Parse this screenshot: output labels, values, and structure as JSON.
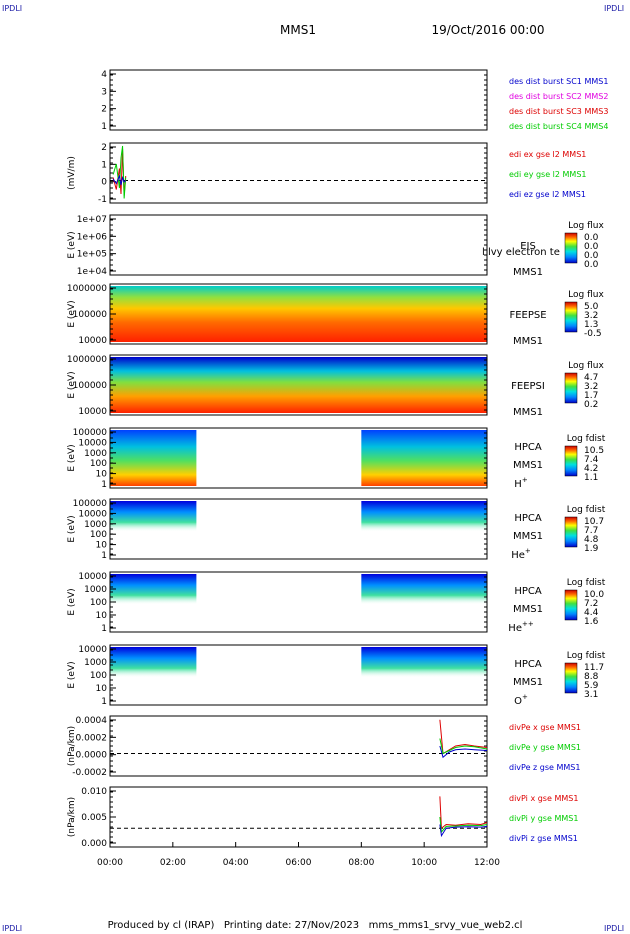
{
  "corner_labels": {
    "top_left": "IPDLI",
    "top_right": "IPDLI",
    "bottom_left": "IPDLI",
    "bottom_right": "IPDLI"
  },
  "header": {
    "spacecraft": "MMS1",
    "date": "19/Oct/2016 00:00"
  },
  "footer": {
    "produced_by": "Produced by cl (IRAP)",
    "printing_date": "Printing date: 27/Nov/2023",
    "file": "mms_mms1_srvy_vue_web2.cl"
  },
  "colors": {
    "blue": "#0000cc",
    "magenta": "#e000e0",
    "red": "#dd0000",
    "green": "#00cc00",
    "jet_low": "#0000ff",
    "jet_high": "#8b0000"
  },
  "chart_data": [
    {
      "type": "line",
      "ylim": [
        0.5,
        4.5
      ],
      "yticks": [
        "1",
        "2",
        "3",
        "4"
      ],
      "legend_position": "right",
      "series": [
        {
          "name": "des dist burst SC1 MMS1",
          "color": "#0000cc",
          "values": []
        },
        {
          "name": "des dist burst SC2 MMS2",
          "color": "#e000e0",
          "values": []
        },
        {
          "name": "des dist burst SC3 MMS3",
          "color": "#dd0000",
          "values": []
        },
        {
          "name": "des dist burst SC4 MMS4",
          "color": "#00cc00",
          "values": []
        }
      ]
    },
    {
      "type": "line",
      "ylabel": "(mV/m)",
      "ylim": [
        -1.5,
        2.5
      ],
      "yticks": [
        "-1",
        "0",
        "1",
        "2"
      ],
      "zero_line": true,
      "legend_position": "right",
      "series": [
        {
          "name": "edi ex gse l2 MMS1",
          "color": "#dd0000",
          "x_hours": [
            0.1,
            0.2,
            0.3,
            0.35,
            0.4,
            0.45,
            0.5
          ],
          "values": [
            0.2,
            -0.6,
            0.8,
            -0.9,
            2.1,
            -1.0,
            0.3
          ]
        },
        {
          "name": "edi ey gse l2 MMS1",
          "color": "#00cc00",
          "x_hours": [
            0.1,
            0.2,
            0.3,
            0.35,
            0.4,
            0.45,
            0.5
          ],
          "values": [
            0.4,
            1.1,
            -0.5,
            1.5,
            2.3,
            -1.2,
            0.2
          ]
        },
        {
          "name": "edi ez gse l2 MMS1",
          "color": "#0000cc",
          "x_hours": [
            0.1,
            0.2,
            0.3,
            0.35,
            0.4,
            0.45,
            0.5
          ],
          "values": [
            0.1,
            -0.2,
            0.3,
            -0.3,
            0.2,
            -0.1,
            0.0
          ]
        }
      ]
    },
    {
      "type": "heatmap",
      "ylabel": "E (eV)",
      "yticks": [
        "1e+04",
        "1e+05",
        "1e+06",
        "1e+07"
      ],
      "instrument": "EIS",
      "overlap_text": "l lvy electron te",
      "spacecraft": "MMS1",
      "colorbar": {
        "title": "Log flux",
        "ticks": [
          "0.0",
          "0.0",
          "0.0",
          "0.0"
        ]
      },
      "data_coverage": []
    },
    {
      "type": "heatmap",
      "ylabel": "E (eV)",
      "yticks": [
        "10000",
        "100000",
        "1000000"
      ],
      "instrument": "FEEPSE",
      "spacecraft": "MMS1",
      "colorbar": {
        "title": "Log flux",
        "ticks": [
          "5.0",
          "3.2",
          "1.3",
          "-0.5"
        ]
      },
      "data_coverage": [
        [
          0,
          12
        ]
      ]
    },
    {
      "type": "heatmap",
      "ylabel": "E (eV)",
      "yticks": [
        "10000",
        "100000",
        "1000000"
      ],
      "instrument": "FEEPSI",
      "spacecraft": "MMS1",
      "colorbar": {
        "title": "Log flux",
        "ticks": [
          "4.7",
          "3.2",
          "1.7",
          "0.2"
        ]
      },
      "data_coverage": [
        [
          0,
          12
        ]
      ]
    },
    {
      "type": "heatmap",
      "ylabel": "E (eV)",
      "yticks": [
        "1",
        "10",
        "100",
        "1000",
        "10000",
        "100000"
      ],
      "instrument": "HPCA",
      "spacecraft": "MMS1",
      "species": "H",
      "species_sup": "+",
      "colorbar": {
        "title": "Log fdist",
        "ticks": [
          "10.5",
          "7.4",
          "4.2",
          "1.1"
        ]
      },
      "data_coverage": [
        [
          0,
          2.75
        ],
        [
          8,
          12
        ]
      ]
    },
    {
      "type": "heatmap",
      "ylabel": "E (eV)",
      "yticks": [
        "1",
        "10",
        "100",
        "1000",
        "10000",
        "100000"
      ],
      "instrument": "HPCA",
      "spacecraft": "MMS1",
      "species": "He",
      "species_sup": "+",
      "colorbar": {
        "title": "Log fdist",
        "ticks": [
          "10.7",
          "7.7",
          "4.8",
          "1.9"
        ]
      },
      "data_coverage": [
        [
          0,
          2.75
        ],
        [
          8,
          12
        ]
      ]
    },
    {
      "type": "heatmap",
      "ylabel": "E (eV)",
      "yticks": [
        "1",
        "10",
        "100",
        "1000",
        "10000"
      ],
      "instrument": "HPCA",
      "spacecraft": "MMS1",
      "species": "He",
      "species_sup": "++",
      "colorbar": {
        "title": "Log fdist",
        "ticks": [
          "10.0",
          "7.2",
          "4.4",
          "1.6"
        ]
      },
      "data_coverage": [
        [
          0,
          2.75
        ],
        [
          8,
          12
        ]
      ]
    },
    {
      "type": "heatmap",
      "ylabel": "E (eV)",
      "yticks": [
        "1",
        "10",
        "100",
        "1000",
        "10000"
      ],
      "instrument": "HPCA",
      "spacecraft": "MMS1",
      "species": "O",
      "species_sup": "+",
      "colorbar": {
        "title": "Log fdist",
        "ticks": [
          "11.7",
          "8.8",
          "5.9",
          "3.1"
        ]
      },
      "data_coverage": [
        [
          0,
          2.75
        ],
        [
          8,
          12
        ]
      ]
    },
    {
      "type": "line",
      "ylabel": "(nPa/km)",
      "ylim": [
        -0.0003,
        0.0005
      ],
      "yticks": [
        "-0.0002",
        "0.0000",
        "0.0002",
        "0.0004"
      ],
      "zero_line": true,
      "legend_position": "right",
      "series": [
        {
          "name": "divPe x gse MMS1",
          "color": "#dd0000",
          "x_hours": [
            10.5,
            10.6,
            10.8,
            11.0,
            11.3,
            11.6,
            12.0
          ],
          "values": [
            0.00045,
            0.0,
            5e-05,
            0.0001,
            0.00012,
            0.0001,
            8e-05
          ]
        },
        {
          "name": "divPe y gse MMS1",
          "color": "#00cc00",
          "x_hours": [
            10.5,
            10.6,
            10.8,
            11.0,
            11.3,
            11.6,
            12.0
          ],
          "values": [
            0.0002,
            0.0,
            4e-05,
            8e-05,
            0.0001,
            9e-05,
            6e-05
          ]
        },
        {
          "name": "divPe z gse MMS1",
          "color": "#0000cc",
          "x_hours": [
            10.5,
            10.6,
            10.8,
            11.0,
            11.3,
            11.6,
            12.0
          ],
          "values": [
            0.0001,
            -5e-05,
            2e-05,
            5e-05,
            6e-05,
            5e-05,
            4e-05
          ]
        }
      ]
    },
    {
      "type": "line",
      "ylabel": "(nPa/km)",
      "ylim": [
        -0.005,
        0.011
      ],
      "yticks": [
        "0.000",
        "0.005",
        "0.010"
      ],
      "xticks": [
        "00:00",
        "02:00",
        "04:00",
        "06:00",
        "08:00",
        "10:00",
        "12:00"
      ],
      "xlim_hours": [
        0,
        12
      ],
      "zero_line": true,
      "legend_position": "right",
      "series": [
        {
          "name": "divPi x gse MMS1",
          "color": "#dd0000",
          "x_hours": [
            10.5,
            10.55,
            10.7,
            11.0,
            11.4,
            11.8,
            12.0
          ],
          "values": [
            0.0085,
            0.0,
            0.001,
            0.0008,
            0.0012,
            0.001,
            0.0015
          ]
        },
        {
          "name": "divPi y gse MMS1",
          "color": "#00cc00",
          "x_hours": [
            10.5,
            10.55,
            10.7,
            11.0,
            11.4,
            11.8,
            12.0
          ],
          "values": [
            0.003,
            -0.001,
            0.0005,
            0.0006,
            0.0008,
            0.0007,
            0.001
          ]
        },
        {
          "name": "divPi z gse MMS1",
          "color": "#0000cc",
          "x_hours": [
            10.5,
            10.55,
            10.7,
            11.0,
            11.4,
            11.8,
            12.0
          ],
          "values": [
            0.001,
            -0.002,
            0.0,
            0.0003,
            0.0004,
            0.0003,
            0.0005
          ]
        }
      ]
    }
  ]
}
